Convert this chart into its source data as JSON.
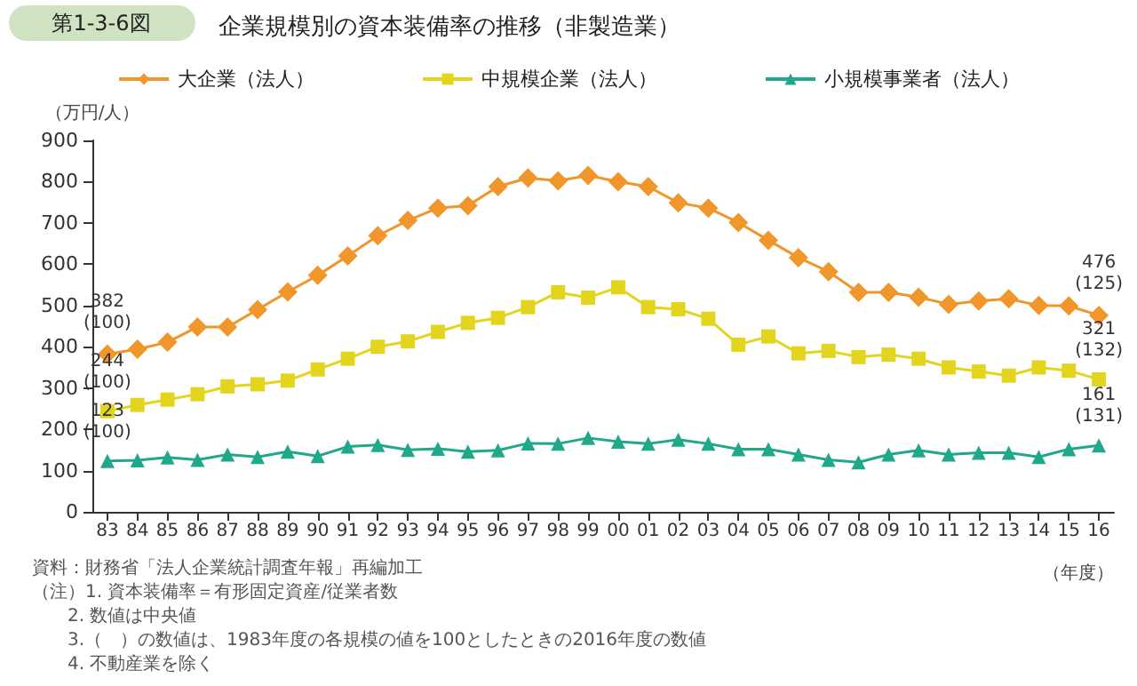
{
  "chart_data": {
    "type": "line",
    "title": "企業規模別の資本装備率の推移（非製造業）",
    "ylabel": "（万円/人）",
    "xlabel": "（年度）",
    "annotations": [
      "第1-3-6図",
      "資料：財務省「法人企業統計調査年報」再編加工",
      "（注）1. 資本装備率＝有形固定資産/従業者数",
      "2. 数値は中央値",
      "3.（　）の数値は、1983年度の各規模の値を100としたときの2016年度の数値",
      "4. 不動産業を除く"
    ],
    "categories": [
      "83",
      "84",
      "85",
      "86",
      "87",
      "88",
      "89",
      "90",
      "91",
      "92",
      "93",
      "94",
      "95",
      "96",
      "97",
      "98",
      "99",
      "00",
      "01",
      "02",
      "03",
      "04",
      "05",
      "06",
      "07",
      "08",
      "09",
      "10",
      "11",
      "12",
      "13",
      "14",
      "15",
      "16"
    ],
    "series": [
      {
        "name": "大企業（法人）",
        "color": "#f0962a",
        "marker": "diamond",
        "values": [
          382,
          394,
          411,
          448,
          448,
          490,
          533,
          573,
          620,
          669,
          706,
          736,
          742,
          788,
          809,
          802,
          815,
          800,
          788,
          749,
          736,
          701,
          658,
          616,
          582,
          532,
          532,
          520,
          503,
          511,
          516,
          500,
          499,
          476
        ],
        "value_labels": [
          "382\n(100)",
          null,
          null,
          null,
          null,
          null,
          null,
          null,
          null,
          null,
          null,
          null,
          null,
          null,
          null,
          null,
          null,
          null,
          null,
          null,
          null,
          null,
          null,
          null,
          null,
          null,
          null,
          null,
          null,
          null,
          null,
          null,
          null,
          "476\n(125)"
        ]
      },
      {
        "name": "中規模企業（法人）",
        "color": "#e3d51e",
        "marker": "square",
        "values": [
          244,
          259,
          272,
          285,
          304,
          309,
          318,
          345,
          371,
          400,
          413,
          436,
          458,
          470,
          496,
          532,
          519,
          544,
          496,
          491,
          468,
          405,
          425,
          384,
          390,
          375,
          381,
          371,
          350,
          340,
          330,
          350,
          342,
          321
        ],
        "value_labels": [
          "244\n(100)",
          null,
          null,
          null,
          null,
          null,
          null,
          null,
          null,
          null,
          null,
          null,
          null,
          null,
          null,
          null,
          null,
          null,
          null,
          null,
          null,
          null,
          null,
          null,
          null,
          null,
          null,
          null,
          null,
          null,
          null,
          null,
          null,
          "321\n(132)"
        ]
      },
      {
        "name": "小規模事業者（法人）",
        "color": "#1fa88a",
        "marker": "triangle",
        "values": [
          123,
          125,
          132,
          126,
          139,
          133,
          146,
          135,
          158,
          162,
          150,
          153,
          146,
          149,
          166,
          165,
          179,
          170,
          165,
          175,
          165,
          152,
          152,
          139,
          126,
          120,
          139,
          149,
          139,
          143,
          143,
          133,
          152,
          161
        ],
        "value_labels": [
          "123\n(100)",
          null,
          null,
          null,
          null,
          null,
          null,
          null,
          null,
          null,
          null,
          null,
          null,
          null,
          null,
          null,
          null,
          null,
          null,
          null,
          null,
          null,
          null,
          null,
          null,
          null,
          null,
          null,
          null,
          null,
          null,
          null,
          null,
          "161\n(131)"
        ]
      }
    ],
    "ylim": [
      0,
      900
    ],
    "yticks": [
      0,
      100,
      200,
      300,
      400,
      500,
      600,
      700,
      800,
      900
    ],
    "grid": false,
    "legend": "top"
  }
}
